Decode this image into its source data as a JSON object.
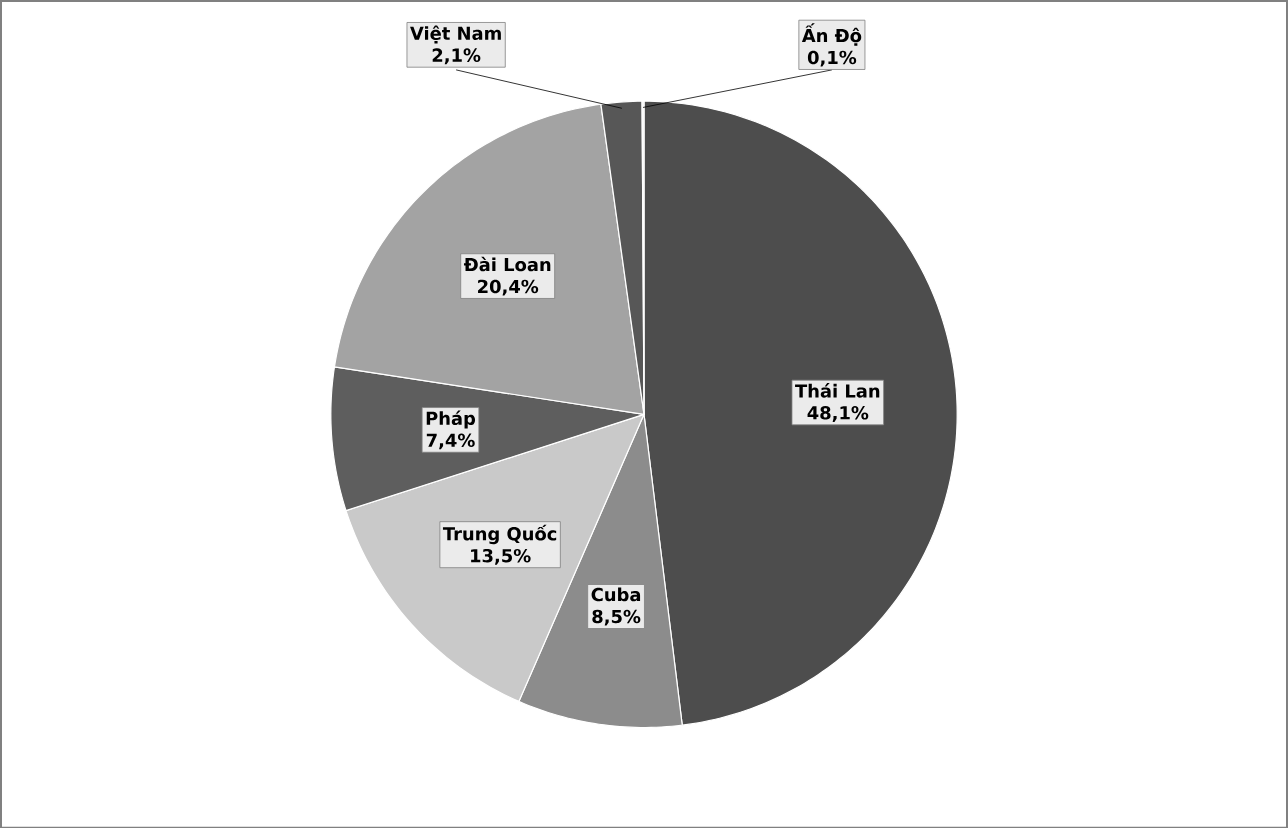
{
  "chart_data": {
    "type": "pie",
    "categories": [
      "Thái Lan",
      "Cuba",
      "Trung Quốc",
      "Pháp",
      "Đài Loan",
      "Việt Nam",
      "Ấn Độ"
    ],
    "values": [
      48.1,
      8.5,
      13.5,
      7.4,
      20.4,
      2.1,
      0.1
    ],
    "colors": [
      "#4d4d4d",
      "#8c8c8c",
      "#c9c9c9",
      "#5e5e5e",
      "#a3a3a3",
      "#575757",
      "#f2f2f2"
    ],
    "value_labels": [
      "48,1%",
      "8,5%",
      "13,5%",
      "7,4%",
      "20,4%",
      "2,1%",
      "0,1%"
    ]
  }
}
